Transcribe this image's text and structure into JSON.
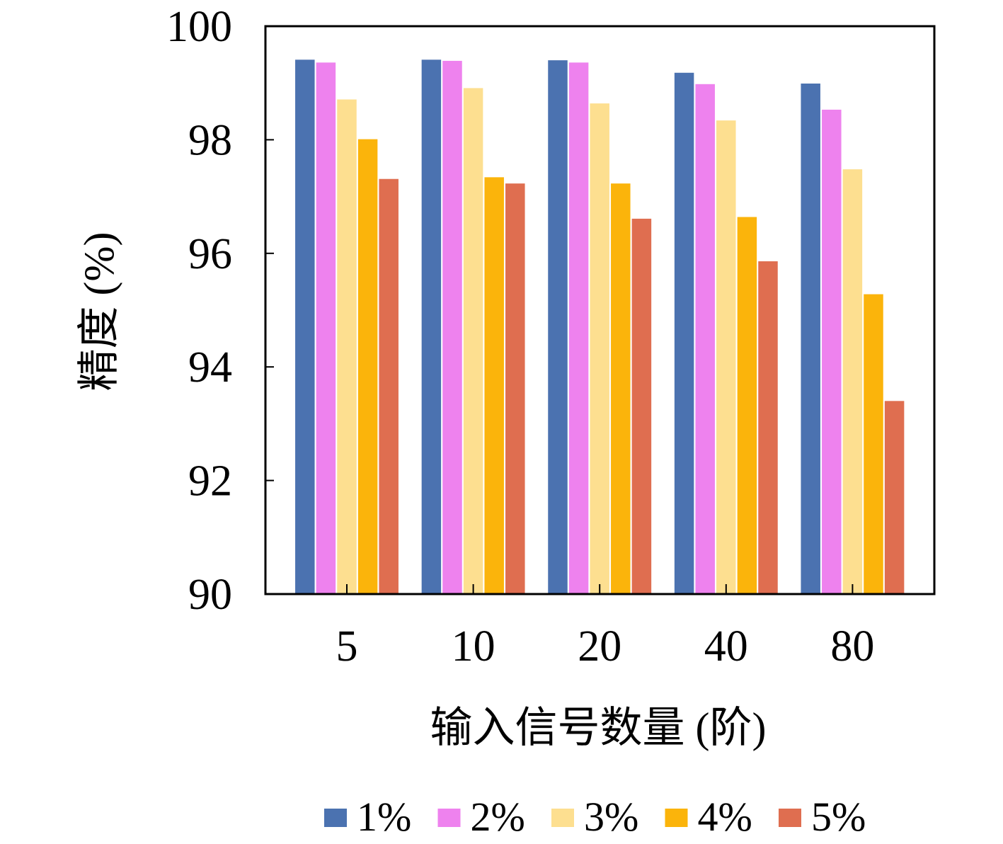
{
  "chart_data": {
    "type": "bar",
    "categories": [
      "5",
      "10",
      "20",
      "40",
      "80"
    ],
    "series": [
      {
        "name": "1%",
        "color": "#4b72b0",
        "values": [
          99.41,
          99.41,
          99.4,
          99.18,
          98.99
        ]
      },
      {
        "name": "2%",
        "color": "#ee82ee",
        "values": [
          99.36,
          99.39,
          99.36,
          98.98,
          98.53
        ]
      },
      {
        "name": "3%",
        "color": "#fddf90",
        "values": [
          98.71,
          98.91,
          98.64,
          98.34,
          97.48
        ]
      },
      {
        "name": "4%",
        "color": "#fbb40b",
        "values": [
          98.01,
          97.34,
          97.23,
          96.64,
          95.28
        ]
      },
      {
        "name": "5%",
        "color": "#df6e50",
        "values": [
          97.31,
          97.23,
          96.61,
          95.86,
          93.4
        ]
      }
    ],
    "xlabel": "输入信号数量 (阶)",
    "ylabel": "精度 (%)",
    "ylim": [
      90,
      100
    ],
    "yticks": [
      90,
      92,
      94,
      96,
      98,
      100
    ],
    "grid": false,
    "legend_position": "bottom"
  }
}
